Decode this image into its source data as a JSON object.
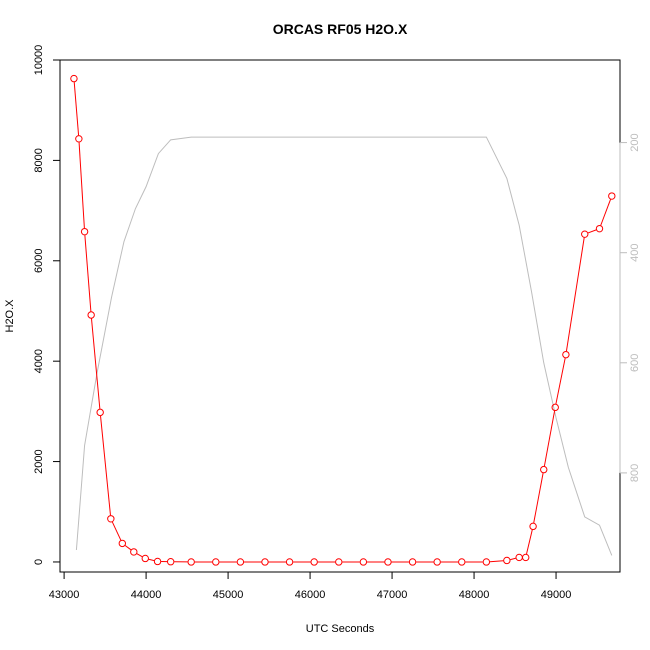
{
  "chart_data": {
    "type": "line",
    "title": "ORCAS RF05 H2O.X",
    "xlabel": "UTC Seconds",
    "ylabel": "H2O.X",
    "xlim": [
      42950,
      49780
    ],
    "ylim": [
      -200,
      10000
    ],
    "x_ticks": [
      43000,
      44000,
      45000,
      46000,
      47000,
      48000,
      49000
    ],
    "y_ticks": [
      0,
      2000,
      4000,
      6000,
      8000,
      10000
    ],
    "y2_ticks": [
      200,
      400,
      600,
      800
    ],
    "y2lim_top_to_bottom": [
      50,
      980
    ],
    "grid": false,
    "series": [
      {
        "color": "#ff0000",
        "markers": "open-circle",
        "axis": "left",
        "x": [
          43120,
          43180,
          43250,
          43330,
          43440,
          43570,
          43710,
          43850,
          43990,
          44140,
          44300,
          44550,
          44850,
          45150,
          45450,
          45750,
          46050,
          46350,
          46650,
          46950,
          47250,
          47550,
          47850,
          48150,
          48400,
          48550,
          48630,
          48720,
          48850,
          48990,
          49120,
          49350,
          49530,
          49680
        ],
        "y": [
          9630,
          8430,
          6580,
          4920,
          2980,
          860,
          370,
          200,
          70,
          10,
          5,
          0,
          0,
          0,
          0,
          0,
          0,
          0,
          0,
          0,
          0,
          0,
          0,
          0,
          30,
          90,
          90,
          710,
          1840,
          3080,
          4130,
          6530,
          6640,
          7290
        ]
      },
      {
        "color": "#bdbdbd",
        "markers": "none",
        "axis": "right",
        "x": [
          43150,
          43250,
          43400,
          43580,
          43730,
          43870,
          44000,
          44150,
          44300,
          44550,
          44850,
          45300,
          48150,
          48400,
          48550,
          48700,
          48850,
          49000,
          49150,
          49350,
          49530,
          49680
        ],
        "y2": [
          940,
          750,
          620,
          480,
          380,
          320,
          280,
          220,
          195,
          190,
          190,
          190,
          190,
          265,
          350,
          470,
          600,
          700,
          790,
          880,
          895,
          950
        ]
      }
    ]
  }
}
